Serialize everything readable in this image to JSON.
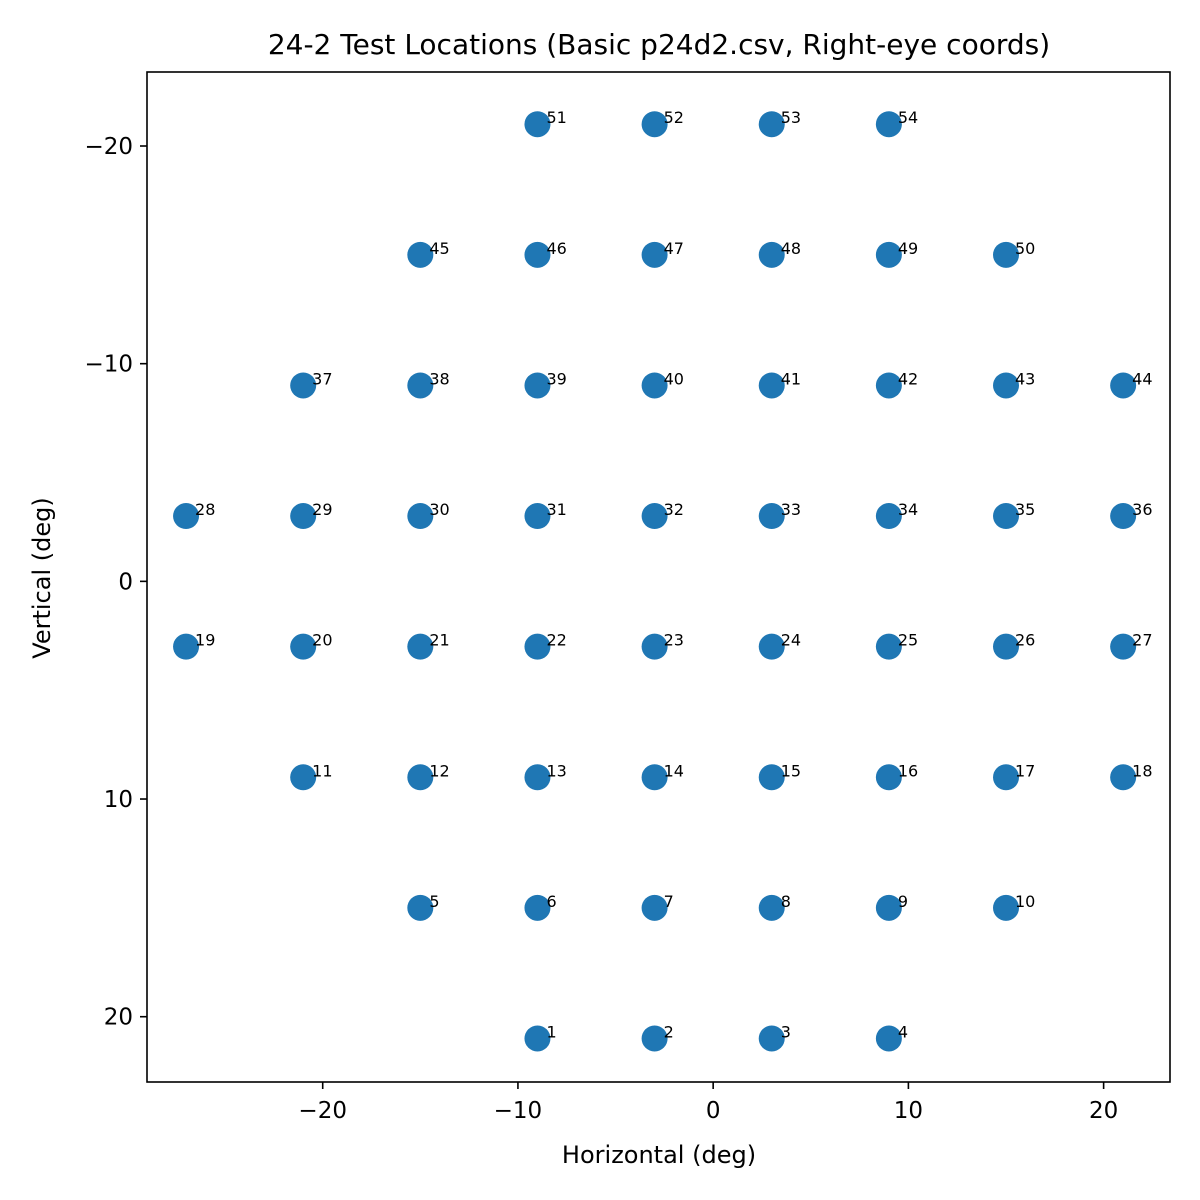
{
  "chart_data": {
    "type": "scatter",
    "title": "24-2 Test Locations (Basic p24d2.csv, Right-eye coords)",
    "xlabel": "Horizontal (deg)",
    "ylabel": "Vertical (deg)",
    "xlim": [
      -29,
      23.4
    ],
    "ylim": [
      23,
      -23.4
    ],
    "y_inverted": true,
    "grid": false,
    "marker_color": "#1f77b4",
    "xticks": [
      {
        "value": -20,
        "label": "−20"
      },
      {
        "value": -10,
        "label": "−10"
      },
      {
        "value": 0,
        "label": "0"
      },
      {
        "value": 10,
        "label": "10"
      },
      {
        "value": 20,
        "label": "20"
      }
    ],
    "yticks": [
      {
        "value": -20,
        "label": "−20"
      },
      {
        "value": -10,
        "label": "−10"
      },
      {
        "value": 0,
        "label": "0"
      },
      {
        "value": 10,
        "label": "10"
      },
      {
        "value": 20,
        "label": "20"
      }
    ],
    "points": [
      {
        "id": "1",
        "x": -9,
        "y": 21
      },
      {
        "id": "2",
        "x": -3,
        "y": 21
      },
      {
        "id": "3",
        "x": 3,
        "y": 21
      },
      {
        "id": "4",
        "x": 9,
        "y": 21
      },
      {
        "id": "5",
        "x": -15,
        "y": 15
      },
      {
        "id": "6",
        "x": -9,
        "y": 15
      },
      {
        "id": "7",
        "x": -3,
        "y": 15
      },
      {
        "id": "8",
        "x": 3,
        "y": 15
      },
      {
        "id": "9",
        "x": 9,
        "y": 15
      },
      {
        "id": "10",
        "x": 15,
        "y": 15
      },
      {
        "id": "11",
        "x": -21,
        "y": 9
      },
      {
        "id": "12",
        "x": -15,
        "y": 9
      },
      {
        "id": "13",
        "x": -9,
        "y": 9
      },
      {
        "id": "14",
        "x": -3,
        "y": 9
      },
      {
        "id": "15",
        "x": 3,
        "y": 9
      },
      {
        "id": "16",
        "x": 9,
        "y": 9
      },
      {
        "id": "17",
        "x": 15,
        "y": 9
      },
      {
        "id": "18",
        "x": 21,
        "y": 9
      },
      {
        "id": "19",
        "x": -27,
        "y": 3
      },
      {
        "id": "20",
        "x": -21,
        "y": 3
      },
      {
        "id": "21",
        "x": -15,
        "y": 3
      },
      {
        "id": "22",
        "x": -9,
        "y": 3
      },
      {
        "id": "23",
        "x": -3,
        "y": 3
      },
      {
        "id": "24",
        "x": 3,
        "y": 3
      },
      {
        "id": "25",
        "x": 9,
        "y": 3
      },
      {
        "id": "26",
        "x": 15,
        "y": 3
      },
      {
        "id": "27",
        "x": 21,
        "y": 3
      },
      {
        "id": "28",
        "x": -27,
        "y": -3
      },
      {
        "id": "29",
        "x": -21,
        "y": -3
      },
      {
        "id": "30",
        "x": -15,
        "y": -3
      },
      {
        "id": "31",
        "x": -9,
        "y": -3
      },
      {
        "id": "32",
        "x": -3,
        "y": -3
      },
      {
        "id": "33",
        "x": 3,
        "y": -3
      },
      {
        "id": "34",
        "x": 9,
        "y": -3
      },
      {
        "id": "35",
        "x": 15,
        "y": -3
      },
      {
        "id": "36",
        "x": 21,
        "y": -3
      },
      {
        "id": "37",
        "x": -21,
        "y": -9
      },
      {
        "id": "38",
        "x": -15,
        "y": -9
      },
      {
        "id": "39",
        "x": -9,
        "y": -9
      },
      {
        "id": "40",
        "x": -3,
        "y": -9
      },
      {
        "id": "41",
        "x": 3,
        "y": -9
      },
      {
        "id": "42",
        "x": 9,
        "y": -9
      },
      {
        "id": "43",
        "x": 15,
        "y": -9
      },
      {
        "id": "44",
        "x": 21,
        "y": -9
      },
      {
        "id": "45",
        "x": -15,
        "y": -15
      },
      {
        "id": "46",
        "x": -9,
        "y": -15
      },
      {
        "id": "47",
        "x": -3,
        "y": -15
      },
      {
        "id": "48",
        "x": 3,
        "y": -15
      },
      {
        "id": "49",
        "x": 9,
        "y": -15
      },
      {
        "id": "50",
        "x": 15,
        "y": -15
      },
      {
        "id": "51",
        "x": -9,
        "y": -21
      },
      {
        "id": "52",
        "x": -3,
        "y": -21
      },
      {
        "id": "53",
        "x": 3,
        "y": -21
      },
      {
        "id": "54",
        "x": 9,
        "y": -21
      }
    ]
  }
}
